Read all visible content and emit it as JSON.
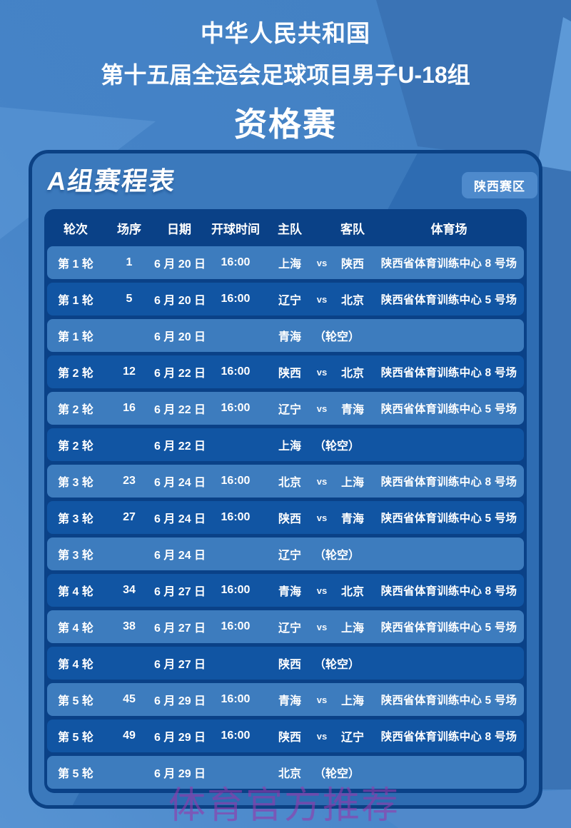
{
  "header": {
    "line1": "中华人民共和国",
    "line2": "第十五届全运会足球项目男子U-18组",
    "line3": "资格赛"
  },
  "card": {
    "title": "A组赛程表",
    "badge": "陕西赛区"
  },
  "table": {
    "headers": [
      "轮次",
      "场序",
      "日期",
      "开球时间",
      "主队",
      "客队",
      "体育场"
    ],
    "rows": [
      {
        "round": "第 1 轮",
        "no": "1",
        "date": "6 月 20 日",
        "time": "16:00",
        "home": "上海",
        "vs": "vs",
        "away": "陕西",
        "venue": "陕西省体育训练中心 8 号场",
        "bye": false
      },
      {
        "round": "第 1 轮",
        "no": "5",
        "date": "6 月 20 日",
        "time": "16:00",
        "home": "辽宁",
        "vs": "vs",
        "away": "北京",
        "venue": "陕西省体育训练中心 5 号场",
        "bye": false
      },
      {
        "round": "第 1 轮",
        "no": "",
        "date": "6 月 20 日",
        "time": "",
        "home": "青海",
        "vs": "",
        "away": "（轮空）",
        "venue": "",
        "bye": true
      },
      {
        "round": "第 2 轮",
        "no": "12",
        "date": "6 月 22 日",
        "time": "16:00",
        "home": "陕西",
        "vs": "vs",
        "away": "北京",
        "venue": "陕西省体育训练中心 8 号场",
        "bye": false
      },
      {
        "round": "第 2 轮",
        "no": "16",
        "date": "6 月 22 日",
        "time": "16:00",
        "home": "辽宁",
        "vs": "vs",
        "away": "青海",
        "venue": "陕西省体育训练中心 5 号场",
        "bye": false
      },
      {
        "round": "第 2 轮",
        "no": "",
        "date": "6 月 22 日",
        "time": "",
        "home": "上海",
        "vs": "",
        "away": "（轮空）",
        "venue": "",
        "bye": true
      },
      {
        "round": "第 3 轮",
        "no": "23",
        "date": "6 月 24 日",
        "time": "16:00",
        "home": "北京",
        "vs": "vs",
        "away": "上海",
        "venue": "陕西省体育训练中心 8 号场",
        "bye": false
      },
      {
        "round": "第 3 轮",
        "no": "27",
        "date": "6 月 24 日",
        "time": "16:00",
        "home": "陕西",
        "vs": "vs",
        "away": "青海",
        "venue": "陕西省体育训练中心 5 号场",
        "bye": false
      },
      {
        "round": "第 3 轮",
        "no": "",
        "date": "6 月 24 日",
        "time": "",
        "home": "辽宁",
        "vs": "",
        "away": "（轮空）",
        "venue": "",
        "bye": true
      },
      {
        "round": "第 4 轮",
        "no": "34",
        "date": "6 月 27 日",
        "time": "16:00",
        "home": "青海",
        "vs": "vs",
        "away": "北京",
        "venue": "陕西省体育训练中心 8 号场",
        "bye": false
      },
      {
        "round": "第 4 轮",
        "no": "38",
        "date": "6 月 27 日",
        "time": "16:00",
        "home": "辽宁",
        "vs": "vs",
        "away": "上海",
        "venue": "陕西省体育训练中心 5 号场",
        "bye": false
      },
      {
        "round": "第 4 轮",
        "no": "",
        "date": "6 月 27 日",
        "time": "",
        "home": "陕西",
        "vs": "",
        "away": "（轮空）",
        "venue": "",
        "bye": true
      },
      {
        "round": "第 5 轮",
        "no": "45",
        "date": "6 月 29 日",
        "time": "16:00",
        "home": "青海",
        "vs": "vs",
        "away": "上海",
        "venue": "陕西省体育训练中心 5 号场",
        "bye": false
      },
      {
        "round": "第 5 轮",
        "no": "49",
        "date": "6 月 29 日",
        "time": "16:00",
        "home": "陕西",
        "vs": "vs",
        "away": "辽宁",
        "venue": "陕西省体育训练中心 8 号场",
        "bye": false
      },
      {
        "round": "第 5 轮",
        "no": "",
        "date": "6 月 29 日",
        "time": "",
        "home": "北京",
        "vs": "",
        "away": "（轮空）",
        "venue": "",
        "bye": true
      }
    ]
  },
  "watermark": "体育官方推荐",
  "colors": {
    "bg-dark": "#3A73B5",
    "bg-light": "#5D99D7",
    "card": "#2E6CB2",
    "panel": "#0A4187",
    "row-light": "#3D7CBE",
    "row-dark": "#1155A3",
    "badge": "#4E8ACC"
  }
}
